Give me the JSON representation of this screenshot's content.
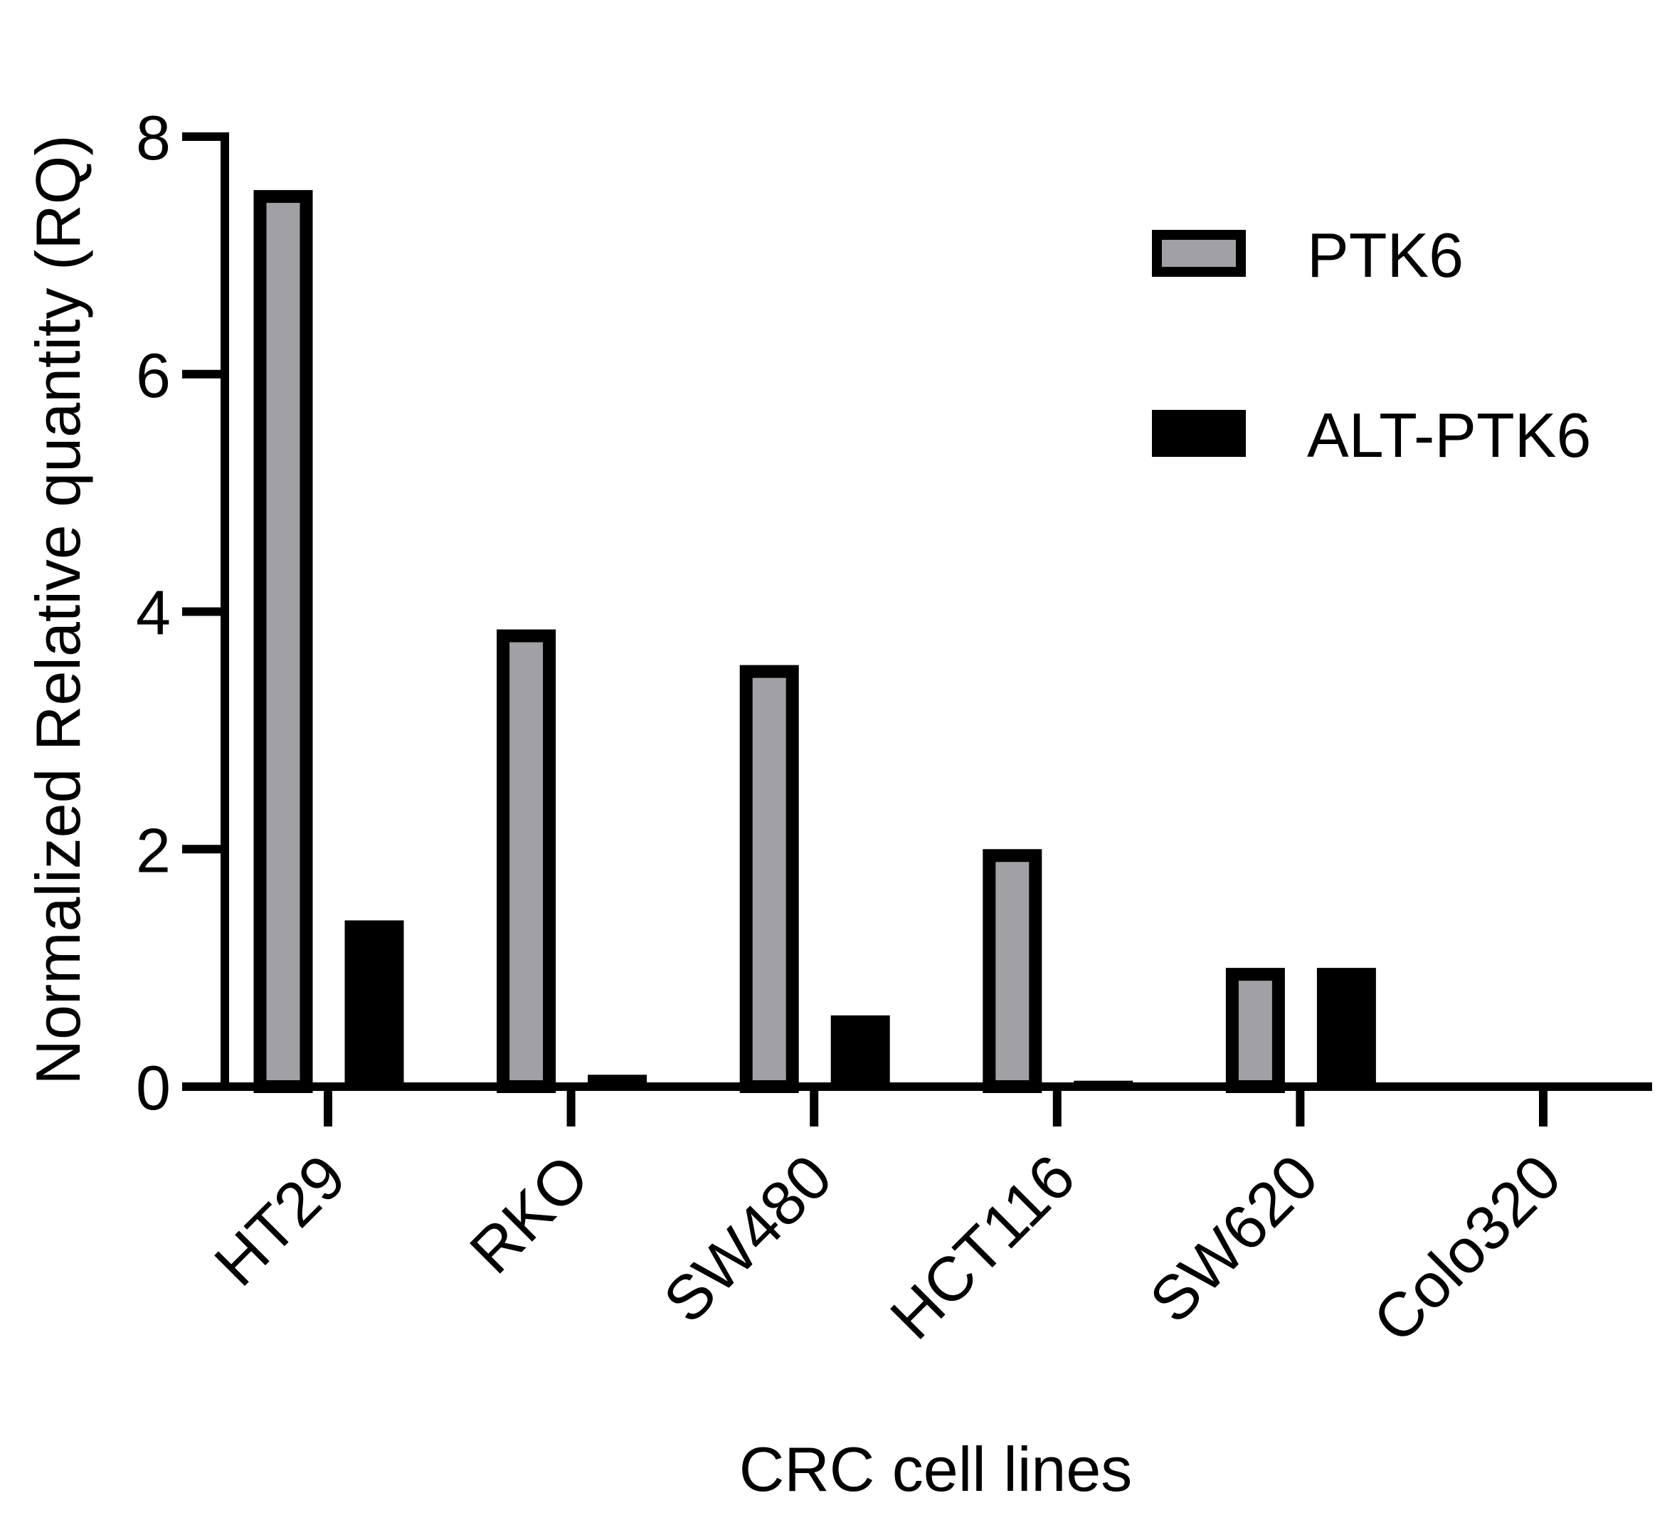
{
  "chart_data": {
    "type": "bar",
    "y_label": "Normalized Relative quantity (RQ)",
    "x_label": "CRC cell lines",
    "categories": [
      "HT29",
      "RKO",
      "SW480",
      "HCT116",
      "SW620",
      "Colo320"
    ],
    "series": [
      {
        "name": "PTK6",
        "color": "#a0a0a5",
        "edgecolor": "#000000",
        "values": [
          7.55,
          3.85,
          3.55,
          2.0,
          1.0,
          0
        ]
      },
      {
        "name": "ALT-PTK6",
        "color": "#000000",
        "edgecolor": "#000000",
        "values": [
          1.4,
          0.1,
          0.6,
          0.05,
          1.0,
          0
        ]
      }
    ],
    "ylim": [
      0,
      8
    ],
    "yticks": [
      0,
      2,
      4,
      6,
      8
    ],
    "grid": false,
    "legend": "upper right"
  }
}
